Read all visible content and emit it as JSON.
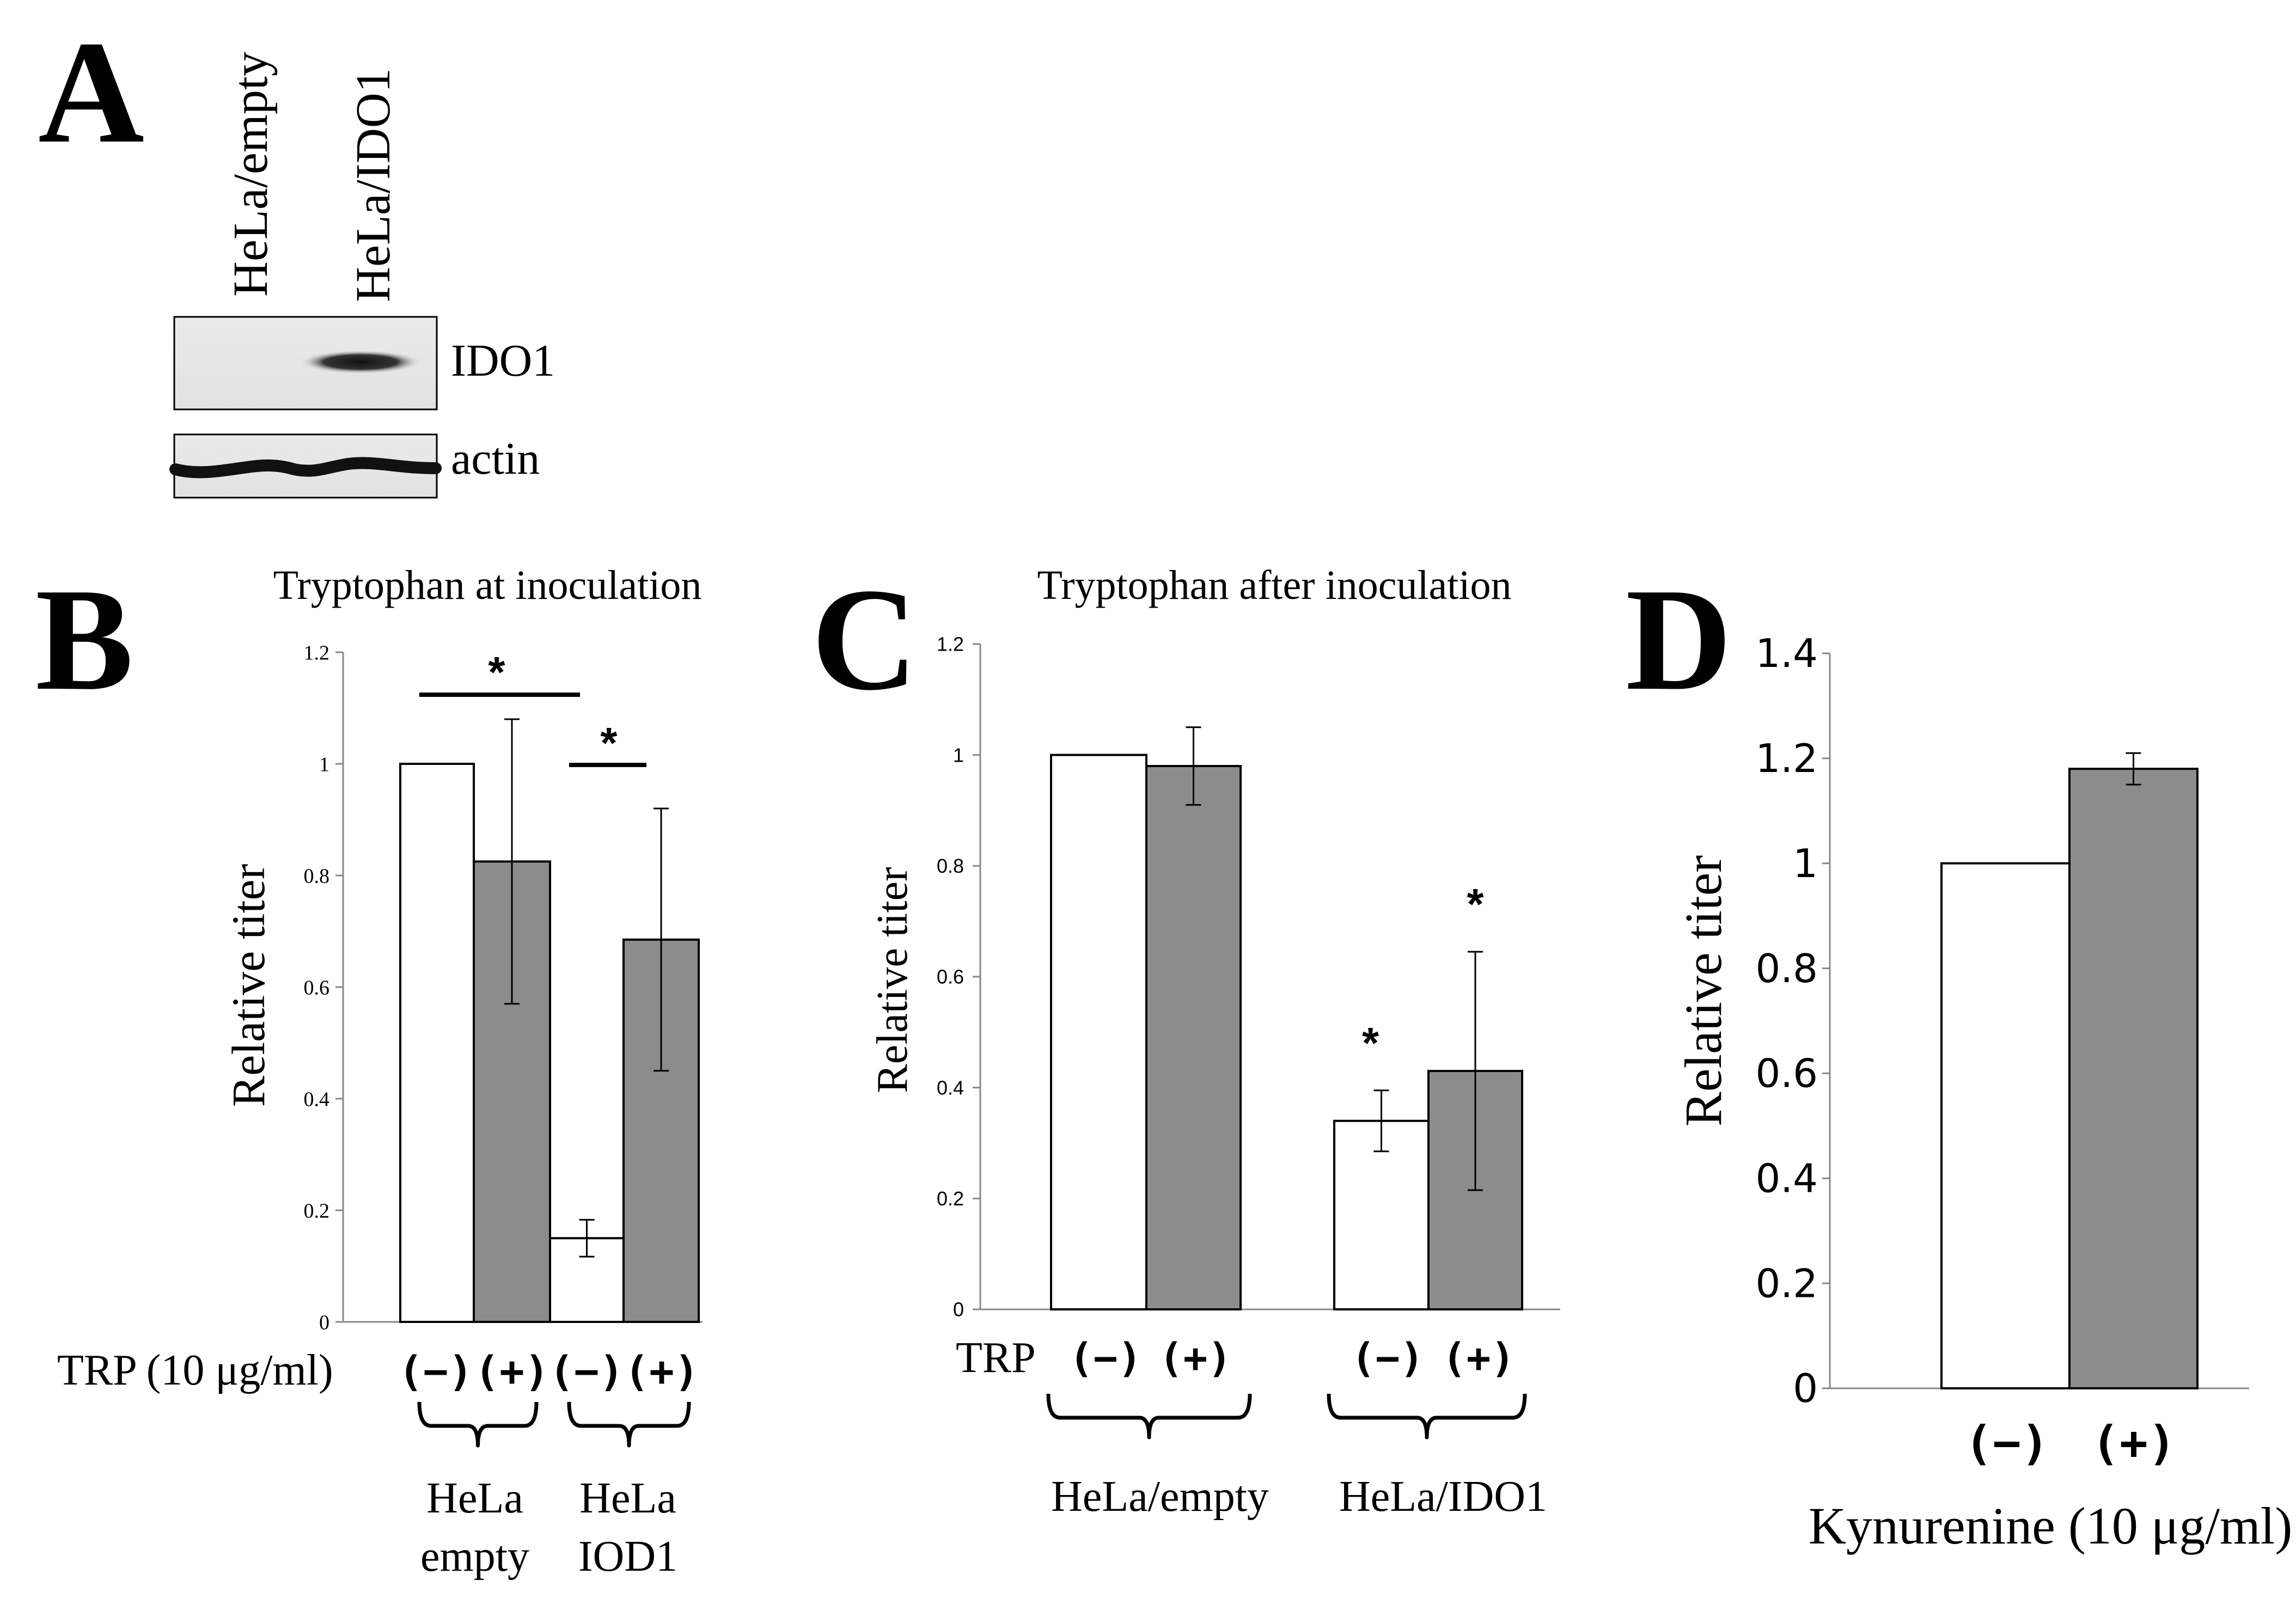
{
  "panel_labels": {
    "a": "A",
    "b": "B",
    "c": "C",
    "d": "D"
  },
  "colors": {
    "open_bar": "#ffffff",
    "filled_bar": "#8c8c8c",
    "axis": "#000000"
  },
  "blot": {
    "lanes": [
      "HeLa/empty",
      "HeLa/IDO1"
    ],
    "bands": [
      "IDO1",
      "actin"
    ]
  },
  "chart_data": [
    {
      "panel": "B",
      "type": "bar",
      "title": "Tryptophan at inoculation",
      "ylabel": "Relative titer",
      "xlabel": "TRP (10 μg/ml)",
      "ylim": [
        0,
        1.2
      ],
      "yticks": [
        "0",
        "0.2",
        "0.4",
        "0.6",
        "0.8",
        "1",
        "1.2"
      ],
      "treatment_labels": [
        "(−)",
        "(+)",
        "(−)",
        "(+)"
      ],
      "groups": [
        {
          "lines": [
            "HeLa",
            "empty"
          ]
        },
        {
          "lines": [
            "HeLa",
            "IOD1"
          ]
        }
      ],
      "bars": [
        {
          "group": 0,
          "treatment": "-",
          "value": 1.0,
          "error": 0
        },
        {
          "group": 0,
          "treatment": "+",
          "value": 0.825,
          "error": 0.255
        },
        {
          "group": 1,
          "treatment": "-",
          "value": 0.15,
          "error": 0.033
        },
        {
          "group": 1,
          "treatment": "+",
          "value": 0.685,
          "error": 0.235
        }
      ],
      "annotations": [
        "*",
        "*"
      ]
    },
    {
      "panel": "C",
      "type": "bar",
      "title": "Tryptophan after inoculation",
      "ylabel": "Relative titer",
      "xlabel": "TRP",
      "ylim": [
        0,
        1.2
      ],
      "yticks": [
        "0",
        "0.2",
        "0.4",
        "0.6",
        "0.8",
        "1",
        "1.2"
      ],
      "treatment_labels": [
        "(−)",
        "(+)",
        "(−)",
        "(+)"
      ],
      "groups": [
        {
          "lines": [
            "HeLa/empty"
          ]
        },
        {
          "lines": [
            "HeLa/IDO1"
          ]
        }
      ],
      "bars": [
        {
          "group": 0,
          "treatment": "-",
          "value": 1.0,
          "error": 0
        },
        {
          "group": 0,
          "treatment": "+",
          "value": 0.98,
          "error": 0.07
        },
        {
          "group": 1,
          "treatment": "-",
          "value": 0.34,
          "error": 0.055
        },
        {
          "group": 1,
          "treatment": "+",
          "value": 0.43,
          "error": 0.215
        }
      ],
      "annotations": [
        "*",
        "*"
      ]
    },
    {
      "panel": "D",
      "type": "bar",
      "title": "",
      "ylabel": "Relative titer",
      "xlabel": "Kynurenine (10 μg/ml)",
      "ylim": [
        0,
        1.4
      ],
      "yticks": [
        "0",
        "0.2",
        "0.4",
        "0.6",
        "0.8",
        "1",
        "1.2",
        "1.4"
      ],
      "treatment_labels": [
        "(−)",
        "(+)"
      ],
      "bars": [
        {
          "treatment": "-",
          "value": 1.0,
          "error": 0
        },
        {
          "treatment": "+",
          "value": 1.18,
          "error": 0.03
        }
      ]
    }
  ]
}
